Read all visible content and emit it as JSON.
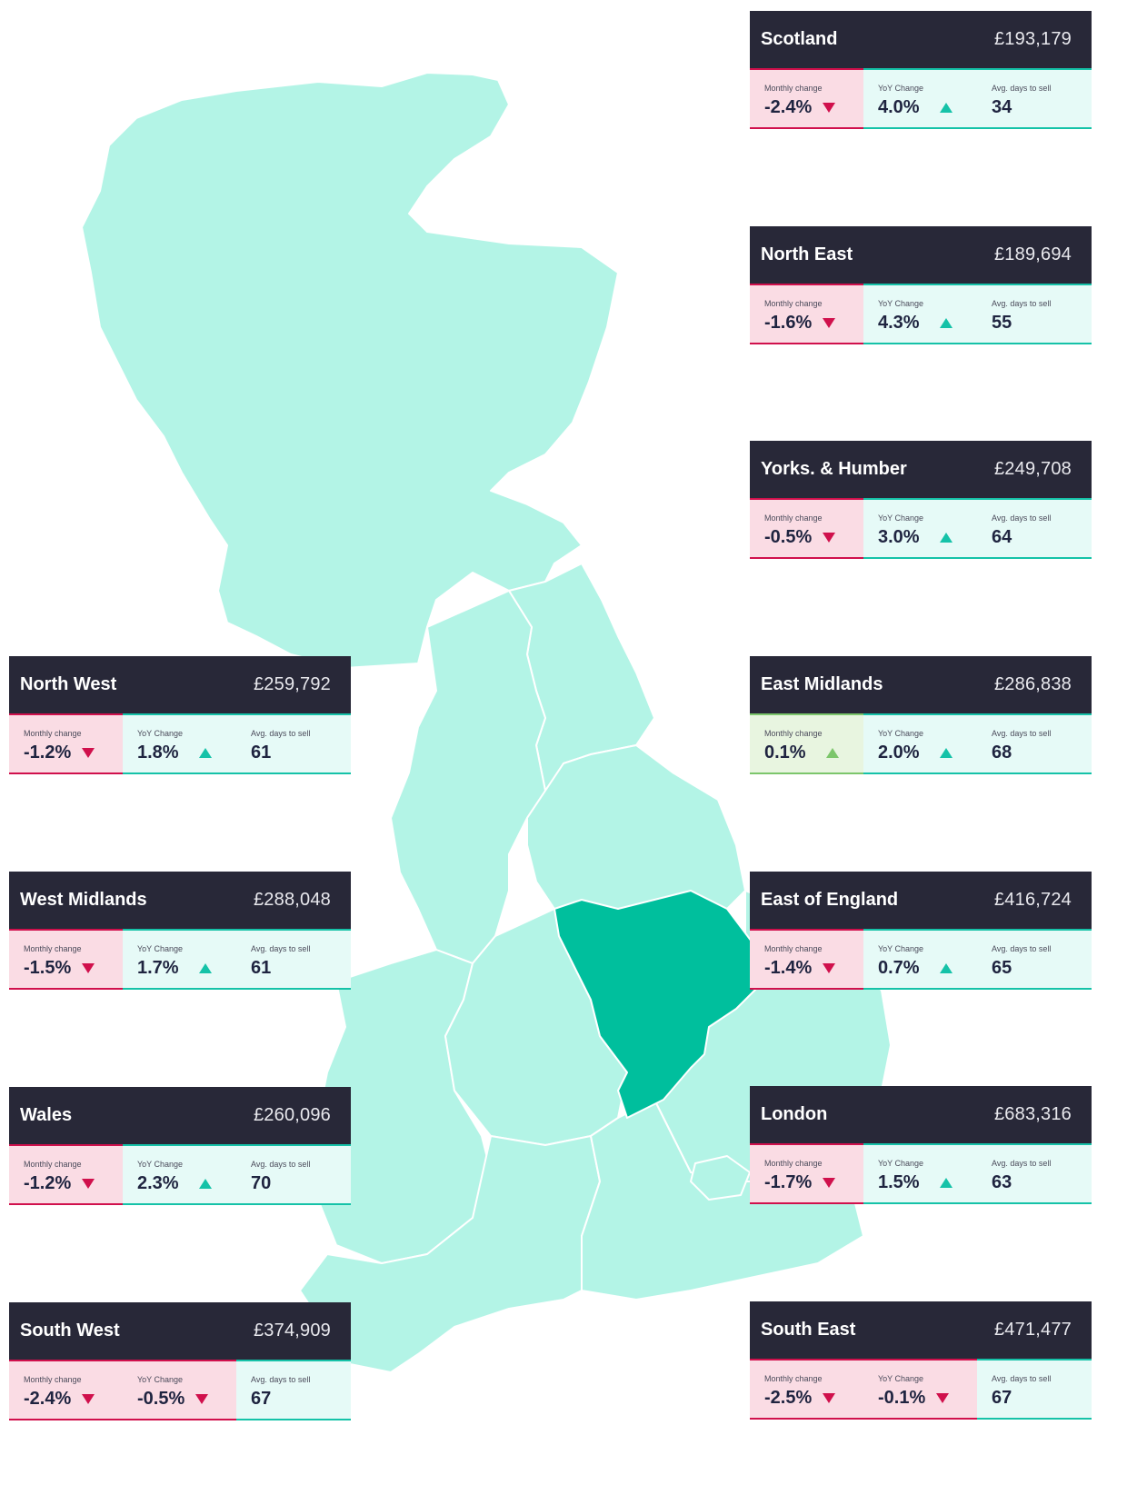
{
  "map": {
    "land_color": "#b3f4e6",
    "highlight_color": "#00bf9d",
    "border_color": "#ffffff",
    "highlighted_region": "East Midlands"
  },
  "labels": {
    "monthly": "Monthly change",
    "yoy": "YoY Change",
    "days": "Avg. days to sell"
  },
  "regions": [
    {
      "name": "Scotland",
      "price": "£193,179",
      "monthly": "-2.4%",
      "monthly_dir": "down",
      "yoy": "4.0%",
      "yoy_dir": "up",
      "days": "34"
    },
    {
      "name": "North East",
      "price": "£189,694",
      "monthly": "-1.6%",
      "monthly_dir": "down",
      "yoy": "4.3%",
      "yoy_dir": "up",
      "days": "55"
    },
    {
      "name": "Yorks. & Humber",
      "price": "£249,708",
      "monthly": "-0.5%",
      "monthly_dir": "down",
      "yoy": "3.0%",
      "yoy_dir": "up",
      "days": "64"
    },
    {
      "name": "East Midlands",
      "price": "£286,838",
      "monthly": "0.1%",
      "monthly_dir": "up-green",
      "yoy": "2.0%",
      "yoy_dir": "up",
      "days": "68"
    },
    {
      "name": "East of England",
      "price": "£416,724",
      "monthly": "-1.4%",
      "monthly_dir": "down",
      "yoy": "0.7%",
      "yoy_dir": "up",
      "days": "65"
    },
    {
      "name": "London",
      "price": "£683,316",
      "monthly": "-1.7%",
      "monthly_dir": "down",
      "yoy": "1.5%",
      "yoy_dir": "up",
      "days": "63"
    },
    {
      "name": "South East",
      "price": "£471,477",
      "monthly": "-2.5%",
      "monthly_dir": "down",
      "yoy": "-0.1%",
      "yoy_dir": "down",
      "days": "67"
    },
    {
      "name": "North West",
      "price": "£259,792",
      "monthly": "-1.2%",
      "monthly_dir": "down",
      "yoy": "1.8%",
      "yoy_dir": "up",
      "days": "61"
    },
    {
      "name": "West Midlands",
      "price": "£288,048",
      "monthly": "-1.5%",
      "monthly_dir": "down",
      "yoy": "1.7%",
      "yoy_dir": "up",
      "days": "61"
    },
    {
      "name": "Wales",
      "price": "£260,096",
      "monthly": "-1.2%",
      "monthly_dir": "down",
      "yoy": "2.3%",
      "yoy_dir": "up",
      "days": "70"
    },
    {
      "name": "South West",
      "price": "£374,909",
      "monthly": "-2.4%",
      "monthly_dir": "down",
      "yoy": "-0.5%",
      "yoy_dir": "down",
      "days": "67"
    }
  ]
}
